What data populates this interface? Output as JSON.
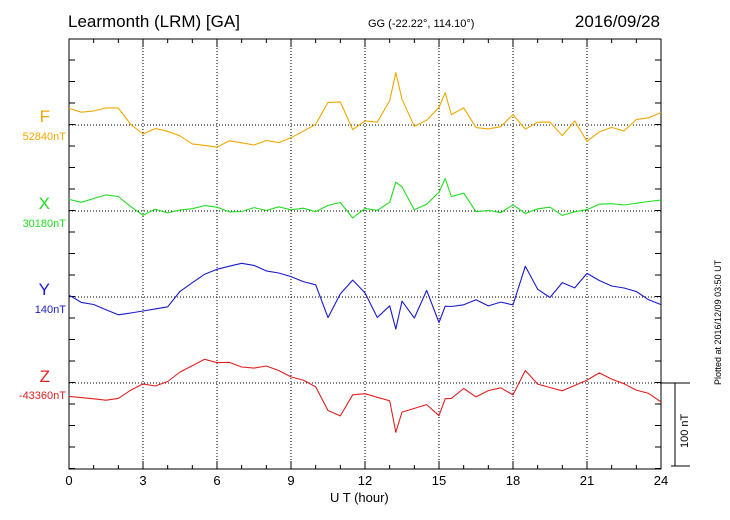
{
  "header": {
    "station": "Learmonth (LRM)  [GA]",
    "coords": "GG (-22.22°, 114.10°)",
    "date": "2016/09/28"
  },
  "side_note": "Plotted at 2016/12/09 03:50 UT",
  "scale_bar": {
    "label": "100 nT",
    "value_nT": 100
  },
  "chart_data": {
    "type": "line",
    "xlabel": "U T (hour)",
    "xlim": [
      0,
      24
    ],
    "xticks": [
      "0",
      "3",
      "6",
      "9",
      "12",
      "15",
      "18",
      "21",
      "24"
    ],
    "units": "nT",
    "series": [
      {
        "name": "F",
        "baseline_label": "52840nT",
        "color": "#f0a800",
        "x": [
          0,
          0.5,
          1,
          1.5,
          2,
          2.5,
          3,
          3.5,
          4,
          4.5,
          5,
          5.5,
          6,
          6.5,
          7,
          7.5,
          8,
          8.5,
          9,
          9.5,
          10,
          10.5,
          11,
          11.5,
          12,
          12.5,
          13,
          13.25,
          13.5,
          14,
          14.5,
          15,
          15.25,
          15.5,
          16,
          16.5,
          17,
          17.5,
          18,
          18.5,
          19,
          19.5,
          20,
          20.5,
          21,
          21.5,
          22,
          22.5,
          23,
          23.5,
          24
        ],
        "y": [
          20,
          16,
          18,
          22,
          22,
          2,
          -10,
          -4,
          -8,
          -14,
          -24,
          -26,
          -28,
          -20,
          -22,
          -24,
          -18,
          -20,
          -14,
          -6,
          2,
          28,
          28,
          -6,
          4,
          2,
          28,
          62,
          30,
          -2,
          6,
          22,
          40,
          14,
          22,
          -2,
          -4,
          -2,
          12,
          -6,
          2,
          2,
          -14,
          4,
          -20,
          -8,
          -2,
          -6,
          8,
          10,
          16
        ]
      },
      {
        "name": "X",
        "baseline_label": "30180nT",
        "color": "#22dd22",
        "x": [
          0,
          0.5,
          1,
          1.5,
          2,
          2.5,
          3,
          3.5,
          4,
          4.5,
          5,
          5.5,
          6,
          6.5,
          7,
          7.5,
          8,
          8.5,
          9,
          9.5,
          10,
          10.5,
          11,
          11.5,
          12,
          12.5,
          13,
          13.25,
          13.5,
          14,
          14.5,
          15,
          15.25,
          15.5,
          16,
          16.5,
          17,
          17.5,
          18,
          18.5,
          19,
          19.5,
          20,
          20.5,
          21,
          21.5,
          22,
          22.5,
          23,
          23.5,
          24
        ],
        "y": [
          14,
          10,
          14,
          18,
          16,
          4,
          -6,
          2,
          -2,
          2,
          4,
          8,
          6,
          0,
          0,
          4,
          0,
          4,
          0,
          2,
          -2,
          6,
          10,
          -8,
          4,
          2,
          12,
          36,
          30,
          2,
          8,
          22,
          38,
          16,
          20,
          -2,
          0,
          -2,
          8,
          -2,
          4,
          6,
          -4,
          0,
          2,
          8,
          8,
          6,
          8,
          10,
          12
        ]
      },
      {
        "name": "Y",
        "baseline_label": "140nT",
        "color": "#1a1acc",
        "x": [
          0,
          0.5,
          1,
          1.5,
          2,
          2.5,
          3,
          3.5,
          4,
          4.5,
          5,
          5.5,
          6,
          6.5,
          7,
          7.5,
          8,
          8.5,
          9,
          9.5,
          10,
          10.5,
          11,
          11.5,
          12,
          12.5,
          13,
          13.25,
          13.5,
          14,
          14.5,
          15,
          15.25,
          15.5,
          16,
          16.5,
          17,
          17.5,
          18,
          18.5,
          19,
          19.5,
          20,
          20.5,
          21,
          21.5,
          22,
          22.5,
          23,
          23.5,
          24
        ],
        "y": [
          2,
          -6,
          -8,
          -14,
          -20,
          -18,
          -16,
          -14,
          -12,
          6,
          16,
          26,
          32,
          36,
          40,
          38,
          32,
          30,
          26,
          20,
          16,
          -24,
          4,
          20,
          4,
          -26,
          -12,
          -40,
          -6,
          -26,
          8,
          -30,
          -10,
          -10,
          -8,
          -2,
          -10,
          -6,
          -10,
          36,
          8,
          -2,
          16,
          10,
          28,
          20,
          14,
          12,
          8,
          -2,
          -8
        ]
      },
      {
        "name": "Z",
        "baseline_label": "-43360nT",
        "color": "#e02020",
        "x": [
          0,
          0.5,
          1,
          1.5,
          2,
          2.5,
          3,
          3.5,
          4,
          4.5,
          5,
          5.5,
          6,
          6.5,
          7,
          7.5,
          8,
          8.5,
          9,
          9.5,
          10,
          10.5,
          11,
          11.5,
          12,
          12.5,
          13,
          13.25,
          13.5,
          14,
          14.5,
          15,
          15.25,
          15.5,
          16,
          16.5,
          17,
          17.5,
          18,
          18.5,
          19,
          19.5,
          20,
          20.5,
          21,
          21.5,
          22,
          22.5,
          23,
          23.5,
          24
        ],
        "y": [
          -16,
          -18,
          -20,
          -22,
          -20,
          -10,
          -2,
          -4,
          2,
          14,
          22,
          30,
          26,
          26,
          20,
          18,
          20,
          14,
          6,
          2,
          -6,
          -34,
          -40,
          -14,
          -12,
          -16,
          -20,
          -58,
          -34,
          -30,
          -26,
          -40,
          -20,
          -20,
          -8,
          -18,
          -10,
          -6,
          -14,
          16,
          0,
          -4,
          -8,
          -2,
          4,
          12,
          4,
          -2,
          -10,
          -14,
          -24
        ]
      }
    ]
  }
}
